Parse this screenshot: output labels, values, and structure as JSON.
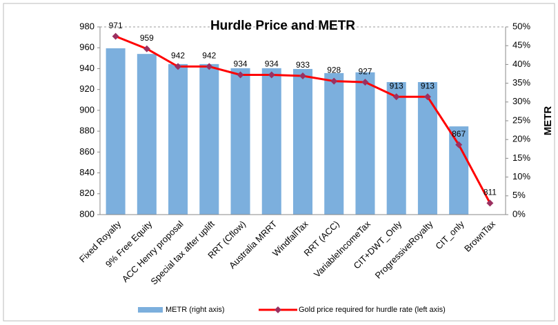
{
  "chart_data": {
    "type": "combo",
    "title": "Hurdle Price and METR",
    "y2label": "METR",
    "categories": [
      "Fixed Royalty",
      "9% Free Equity",
      "ACC Henry proposal",
      "Special tax after uplift",
      "RRT (Cflow)",
      "Australia MRRT",
      "WindfallTax",
      "RRT (ACC)",
      "VariableIncomeTax",
      "CIT+DWT_Only",
      "ProgressiveRoyalty",
      "CIT_only",
      "BrownTax"
    ],
    "series": [
      {
        "name": "METR (right axis)",
        "type": "bar",
        "axis": "y2",
        "color": "#7cafdd",
        "values": [
          44.3,
          42.8,
          40.1,
          40.1,
          39.0,
          39.0,
          38.8,
          37.7,
          37.9,
          35.3,
          35.3,
          23.5,
          0
        ]
      },
      {
        "name": "Gold price required for hurdle rate (left axis)",
        "type": "line",
        "color": "#ff0000",
        "marker_color": "#9b3060",
        "values": [
          971,
          959,
          942,
          942,
          934,
          934,
          933,
          928,
          927,
          913,
          913,
          867,
          811
        ]
      }
    ],
    "ylim": [
      800,
      980
    ],
    "yticks": [
      800,
      820,
      840,
      860,
      880,
      900,
      920,
      940,
      960,
      980
    ],
    "y2lim": [
      0,
      50
    ],
    "y2ticks": [
      {
        "value": 0,
        "label": "0%"
      },
      {
        "value": 5,
        "label": "5%"
      },
      {
        "value": 10,
        "label": "10%"
      },
      {
        "value": 15,
        "label": "15%"
      },
      {
        "value": 20,
        "label": "20%"
      },
      {
        "value": 25,
        "label": "25%"
      },
      {
        "value": 30,
        "label": "30%"
      },
      {
        "value": 35,
        "label": "35%"
      },
      {
        "value": 40,
        "label": "40%"
      },
      {
        "value": 45,
        "label": "45%"
      },
      {
        "value": 50,
        "label": "50%"
      }
    ],
    "grid": false,
    "legend": "bottom"
  }
}
